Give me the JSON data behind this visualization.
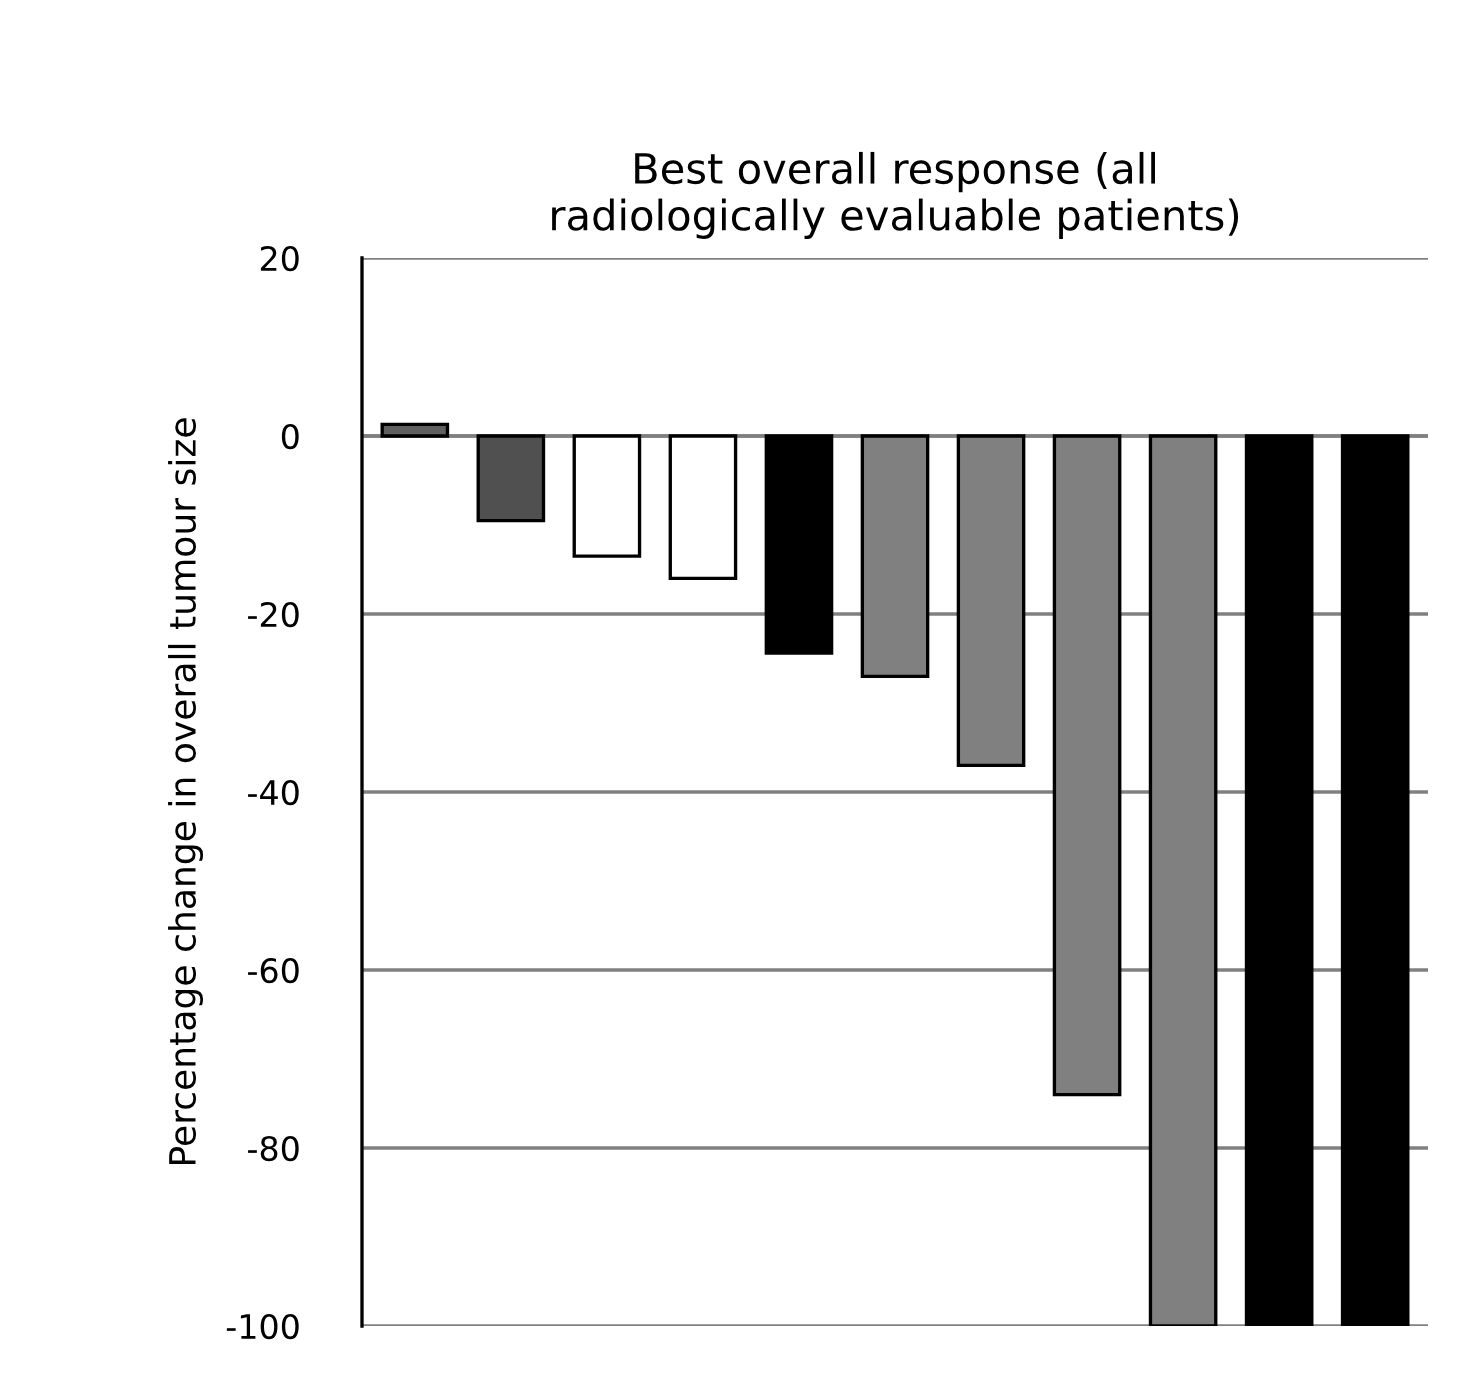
{
  "chart_data": {
    "type": "bar",
    "title": "Best overall response (all\nradiologically evaluable patients)",
    "ylabel": "Percentage change in overall tumour size",
    "categories": [
      null,
      null,
      null,
      null,
      null,
      null,
      null,
      null,
      null,
      null,
      null
    ],
    "values": [
      1.3,
      -9.5,
      -13.5,
      -16,
      -24.4,
      -27,
      -37,
      -74,
      -100,
      -100,
      -100
    ],
    "colors": [
      "#606060",
      "#505050",
      "#ffffff",
      "#ffffff",
      "#000000",
      "#808080",
      "#808080",
      "#808080",
      "#808080",
      "#000000",
      "#000000"
    ],
    "ylim": [
      -100,
      20
    ],
    "yticks": [
      -100,
      -80,
      -60,
      -40,
      -20,
      0,
      20
    ],
    "grid": "y"
  }
}
